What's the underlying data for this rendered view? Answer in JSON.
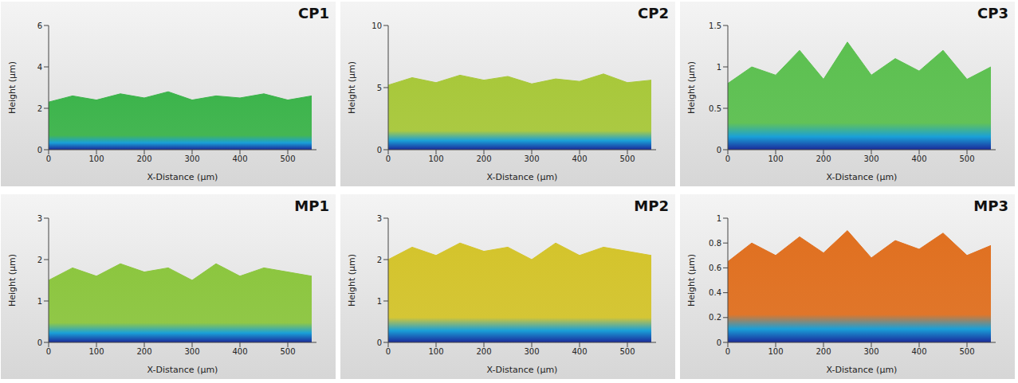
{
  "chart_data": [
    {
      "type": "area",
      "title": "CP1",
      "xlabel": "X-Distance (µm)",
      "ylabel": "Height (µm)",
      "color": "#3cb44b",
      "grid": false,
      "x": [
        0,
        50,
        100,
        150,
        200,
        250,
        300,
        350,
        400,
        450,
        500,
        550
      ],
      "values": [
        2.3,
        2.6,
        2.4,
        2.7,
        2.5,
        2.8,
        2.4,
        2.6,
        2.5,
        2.7,
        2.4,
        2.6
      ],
      "xlim": [
        0,
        560
      ],
      "xticks": [
        0,
        100,
        200,
        300,
        400,
        500
      ],
      "ylim": [
        0,
        6
      ],
      "yticks": [
        0,
        2,
        4,
        6
      ]
    },
    {
      "type": "area",
      "title": "CP2",
      "xlabel": "X-Distance (µm)",
      "ylabel": "Height (µm)",
      "color": "#a8c83a",
      "grid": false,
      "x": [
        0,
        50,
        100,
        150,
        200,
        250,
        300,
        350,
        400,
        450,
        500,
        550
      ],
      "values": [
        5.2,
        5.8,
        5.4,
        6.0,
        5.6,
        5.9,
        5.3,
        5.7,
        5.5,
        6.1,
        5.4,
        5.6
      ],
      "xlim": [
        0,
        560
      ],
      "xticks": [
        0,
        100,
        200,
        300,
        400,
        500
      ],
      "ylim": [
        0,
        10
      ],
      "yticks": [
        0,
        5,
        10
      ]
    },
    {
      "type": "area",
      "title": "CP3",
      "xlabel": "X-Distance (µm)",
      "ylabel": "Height (µm)",
      "color": "#5cc050",
      "grid": false,
      "x": [
        0,
        50,
        100,
        150,
        200,
        250,
        300,
        350,
        400,
        450,
        500,
        550
      ],
      "values": [
        0.8,
        1.0,
        0.9,
        1.2,
        0.85,
        1.3,
        0.9,
        1.1,
        0.95,
        1.2,
        0.85,
        1.0
      ],
      "xlim": [
        0,
        560
      ],
      "xticks": [
        0,
        100,
        200,
        300,
        400,
        500
      ],
      "ylim": [
        0,
        1.5
      ],
      "yticks": [
        0,
        0.5,
        1,
        1.5
      ]
    },
    {
      "type": "area",
      "title": "MP1",
      "xlabel": "X-Distance (µm)",
      "ylabel": "Height (µm)",
      "color": "#8cc63f",
      "grid": false,
      "x": [
        0,
        50,
        100,
        150,
        200,
        250,
        300,
        350,
        400,
        450,
        500,
        550
      ],
      "values": [
        1.5,
        1.8,
        1.6,
        1.9,
        1.7,
        1.8,
        1.5,
        1.9,
        1.6,
        1.8,
        1.7,
        1.6
      ],
      "xlim": [
        0,
        560
      ],
      "xticks": [
        0,
        100,
        200,
        300,
        400,
        500
      ],
      "ylim": [
        0,
        3
      ],
      "yticks": [
        0,
        1,
        2,
        3
      ]
    },
    {
      "type": "area",
      "title": "MP2",
      "xlabel": "X-Distance (µm)",
      "ylabel": "Height (µm)",
      "color": "#d4c42c",
      "grid": false,
      "x": [
        0,
        50,
        100,
        150,
        200,
        250,
        300,
        350,
        400,
        450,
        500,
        550
      ],
      "values": [
        2.0,
        2.3,
        2.1,
        2.4,
        2.2,
        2.3,
        2.0,
        2.4,
        2.1,
        2.3,
        2.2,
        2.1
      ],
      "xlim": [
        0,
        560
      ],
      "xticks": [
        0,
        100,
        200,
        300,
        400,
        500
      ],
      "ylim": [
        0,
        3
      ],
      "yticks": [
        0,
        1,
        2,
        3
      ]
    },
    {
      "type": "area",
      "title": "MP3",
      "xlabel": "X-Distance (µm)",
      "ylabel": "Height (µm)",
      "color": "#e07020",
      "grid": false,
      "x": [
        0,
        50,
        100,
        150,
        200,
        250,
        300,
        350,
        400,
        450,
        500,
        550
      ],
      "values": [
        0.65,
        0.8,
        0.7,
        0.85,
        0.72,
        0.9,
        0.68,
        0.82,
        0.75,
        0.88,
        0.7,
        0.78
      ],
      "xlim": [
        0,
        560
      ],
      "xticks": [
        0,
        100,
        200,
        300,
        400,
        500
      ],
      "ylim": [
        0,
        1
      ],
      "yticks": [
        0,
        0.2,
        0.4,
        0.6,
        0.8,
        1
      ]
    }
  ]
}
